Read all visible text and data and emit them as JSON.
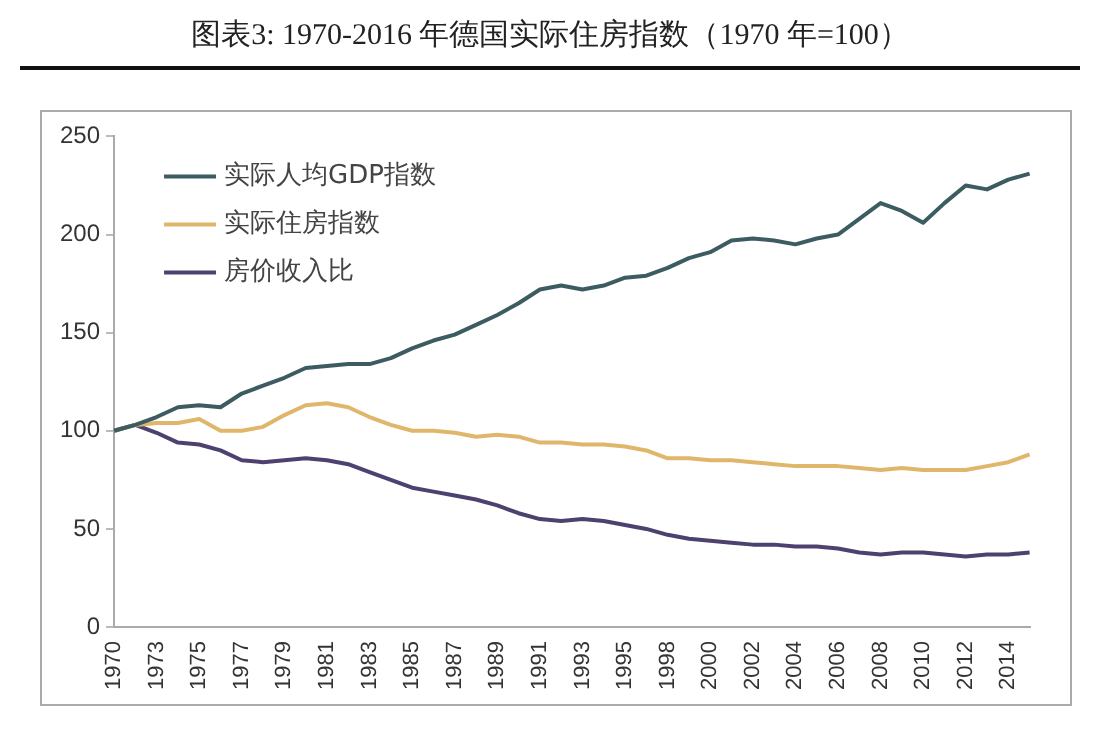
{
  "chart_data": {
    "type": "line",
    "title": "图表3:    1970-2016 年德国实际住房指数（1970 年=100）",
    "categories": [
      "1970",
      null,
      "1973",
      null,
      "1975",
      null,
      "1977",
      null,
      "1979",
      null,
      "1981",
      null,
      "1983",
      null,
      "1985",
      null,
      "1987",
      null,
      "1989",
      null,
      "1991",
      null,
      "1993",
      null,
      "1995",
      null,
      "1998",
      null,
      "2000",
      null,
      "2002",
      null,
      "2004",
      null,
      "2006",
      null,
      "2008",
      null,
      "2010",
      null,
      "2012",
      null,
      "2014",
      null
    ],
    "series": [
      {
        "name": "实际人均GDP指数",
        "color": "#3d5c61",
        "values": [
          100,
          103,
          107,
          112,
          113,
          112,
          119,
          123,
          127,
          132,
          133,
          134,
          134,
          137,
          142,
          146,
          149,
          154,
          159,
          165,
          172,
          174,
          172,
          174,
          178,
          179,
          183,
          188,
          191,
          197,
          198,
          197,
          195,
          198,
          200,
          208,
          216,
          212,
          206,
          216,
          225,
          223,
          228,
          231
        ]
      },
      {
        "name": "实际住房指数",
        "color": "#e0b66a",
        "values": [
          100,
          103,
          104,
          104,
          106,
          100,
          100,
          102,
          108,
          113,
          114,
          112,
          107,
          103,
          100,
          100,
          99,
          97,
          98,
          97,
          94,
          94,
          93,
          93,
          92,
          90,
          86,
          86,
          85,
          85,
          84,
          83,
          82,
          82,
          82,
          81,
          80,
          81,
          80,
          80,
          80,
          82,
          84,
          88
        ]
      },
      {
        "name": "房价收入比",
        "color": "#4d4170",
        "values": [
          100,
          103,
          99,
          94,
          93,
          90,
          85,
          84,
          85,
          86,
          85,
          83,
          79,
          75,
          71,
          69,
          67,
          65,
          62,
          58,
          55,
          54,
          55,
          54,
          52,
          50,
          47,
          45,
          44,
          43,
          42,
          42,
          41,
          41,
          40,
          38,
          37,
          38,
          38,
          37,
          36,
          37,
          37,
          38
        ]
      }
    ],
    "ylim": [
      0,
      250
    ],
    "yticks": [
      0,
      50,
      100,
      150,
      200,
      250
    ],
    "grid": false,
    "legend": "top left",
    "marker": "none",
    "line_style": "solid"
  }
}
